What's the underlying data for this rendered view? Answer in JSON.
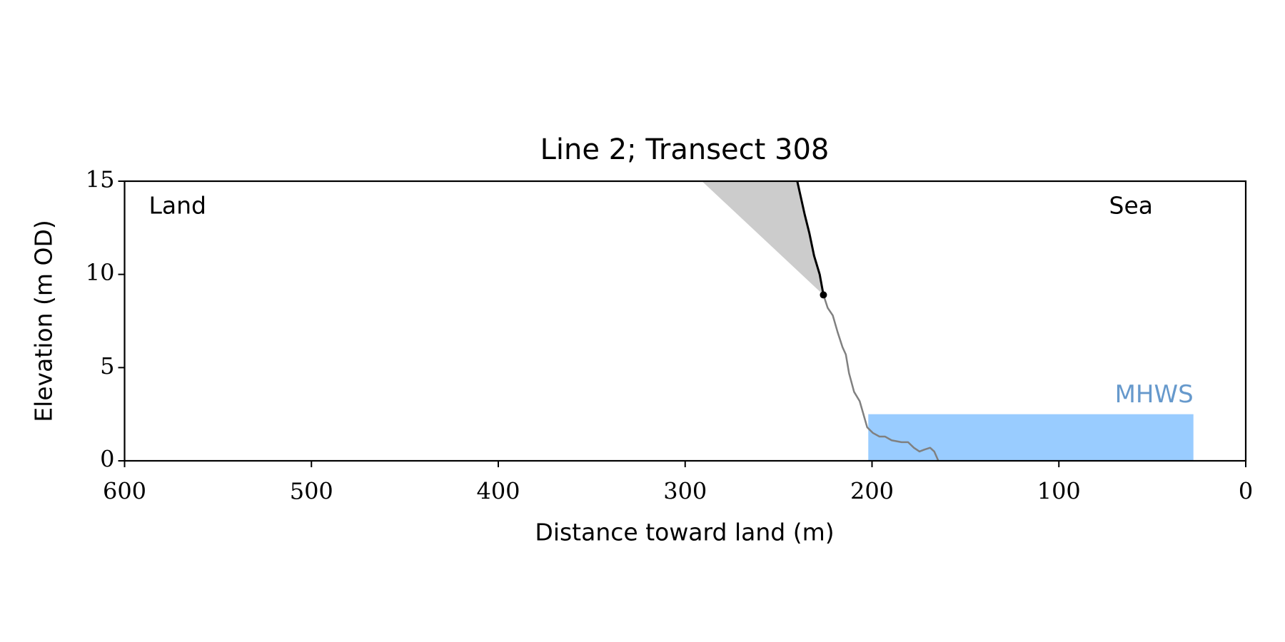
{
  "chart_data": {
    "type": "line",
    "title": "Line 2; Transect 308",
    "x_label": "Distance toward land (m)",
    "y_label": "Elevation (m OD)",
    "xlim": [
      600,
      0
    ],
    "xticks": [
      600,
      500,
      400,
      300,
      200,
      100,
      0
    ],
    "ylim": [
      0,
      15
    ],
    "yticks": [
      0,
      5,
      10,
      15
    ],
    "annotations": [
      {
        "text": "Land"
      },
      {
        "text": "Sea"
      }
    ],
    "shade": {
      "color": "#cccccc",
      "x": [
        291,
        240,
        236,
        233.5,
        231,
        228,
        226
      ],
      "y": [
        15,
        15,
        13.2,
        12.2,
        11,
        10,
        8.9
      ]
    },
    "mhws": {
      "label": "MHWS",
      "color": "#99ccff",
      "label_color": "#6699cc",
      "x": [
        202,
        28
      ],
      "y": [
        0,
        2.5
      ]
    },
    "profile": {
      "color": "#808080",
      "x": [
        226,
        223.7,
        221,
        218.4,
        215.8,
        214,
        212.3,
        209.6,
        206.6,
        202.6,
        199.6,
        196,
        193,
        189.5,
        184.2,
        180.7,
        177.6,
        174.6,
        172,
        168.9,
        166.7,
        164.5
      ],
      "y": [
        8.9,
        8.2,
        7.8,
        6.9,
        6.1,
        5.7,
        4.7,
        3.7,
        3.2,
        1.8,
        1.5,
        1.3,
        1.3,
        1.1,
        1.0,
        1.0,
        0.7,
        0.5,
        0.6,
        0.7,
        0.5,
        0
      ]
    },
    "cliff": {
      "color": "#000000",
      "x": [
        240,
        236,
        233.5,
        231,
        228,
        226
      ],
      "y": [
        15,
        13.2,
        12.2,
        11,
        10,
        8.9
      ]
    },
    "point": {
      "color": "#000000",
      "x": 226,
      "y": 8.9
    }
  }
}
